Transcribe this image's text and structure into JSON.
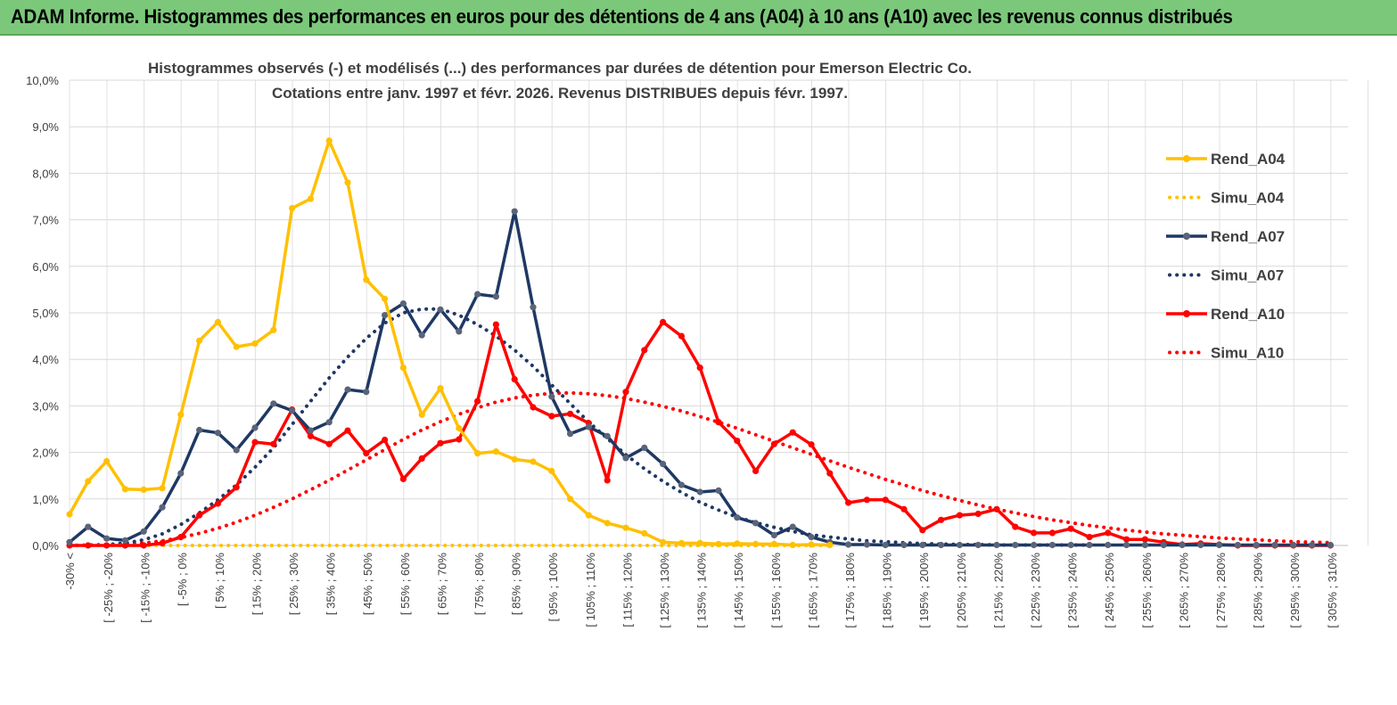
{
  "banner": {
    "title": "ADAM Informe. Histogrammes des performances en euros pour des détentions de 4 ans (A04) à 10 ans (A10) avec les revenus connus distribués"
  },
  "chart_data": {
    "type": "line",
    "title_line1": "Histogrammes observés (-) et modélisés (...) des performances par durées de détention pour Emerson Electric Co.",
    "title_line2": "Cotations entre janv. 1997 et févr. 2026. Revenus DISTRIBUES depuis févr. 1997.",
    "ylim": [
      0,
      10
    ],
    "yticks": [
      "0,0%",
      "1,0%",
      "2,0%",
      "3,0%",
      "4,0%",
      "5,0%",
      "6,0%",
      "7,0%",
      "8,0%",
      "9,0%",
      "10,0%"
    ],
    "xtick_labels": [
      "-30% <",
      "[ -25% ; -20%",
      "[ -15% ; -10%",
      "[ -5% ; 0%",
      "[ 5% ; 10%",
      "[ 15% ; 20%",
      "[ 25% ; 30%",
      "[ 35% ; 40%",
      "[ 45% ; 50%",
      "[ 55% ; 60%",
      "[ 65% ; 70%",
      "[ 75% ; 80%",
      "[ 85% ; 90%",
      "[ 95% ; 100%",
      "[ 105% ; 110%",
      "[ 115% ; 120%",
      "[ 125% ; 130%",
      "[ 135% ; 140%",
      "[ 145% ; 150%",
      "[ 155% ; 160%",
      "[ 165% ; 170%",
      "[ 175% ; 180%",
      "[ 185% ; 190%",
      "[ 195% ; 200%",
      "[ 205% ; 210%",
      "[ 215% ; 220%",
      "[ 225% ; 230%",
      "[ 235% ; 240%",
      "[ 245% ; 250%",
      "[ 255% ; 260%",
      "[ 265% ; 270%",
      "[ 275% ; 280%",
      "[ 285% ; 290%",
      "[ 295% ; 300%",
      "[ 305% ; 310%"
    ],
    "n_categories": 69,
    "series": [
      {
        "name": "Rend_A04",
        "style": "solid",
        "color": "#ffc000",
        "values": [
          0.67,
          1.38,
          1.81,
          1.21,
          1.2,
          1.23,
          2.81,
          4.4,
          4.8,
          4.27,
          4.34,
          4.63,
          7.25,
          7.45,
          8.7,
          7.8,
          5.71,
          5.3,
          3.82,
          2.81,
          3.38,
          2.52,
          1.98,
          2.02,
          1.85,
          1.8,
          1.6,
          1.0,
          0.65,
          0.48,
          0.38,
          0.26,
          0.07,
          0.05,
          0.05,
          0.03,
          0.04,
          0.03,
          0.03,
          0.01,
          0.02,
          0.01
        ]
      },
      {
        "name": "Simu_A04",
        "style": "dotted",
        "color": "#ffc000",
        "values": [
          0,
          0,
          0,
          0,
          0,
          0,
          0,
          0,
          0,
          0,
          0,
          0,
          0,
          0,
          0,
          0,
          0,
          0,
          0,
          0,
          0,
          0,
          0,
          0,
          0,
          0,
          0,
          0,
          0,
          0,
          0,
          0,
          0,
          0,
          0,
          0,
          0,
          0,
          0,
          0,
          0,
          0
        ]
      },
      {
        "name": "Rend_A07",
        "style": "solid",
        "color": "#1f3864",
        "values": [
          0.07,
          0.4,
          0.15,
          0.11,
          0.3,
          0.82,
          1.55,
          2.48,
          2.42,
          2.05,
          2.53,
          3.05,
          2.9,
          2.47,
          2.65,
          3.35,
          3.3,
          4.95,
          5.2,
          4.52,
          5.07,
          4.6,
          5.4,
          5.35,
          7.18,
          5.12,
          3.2,
          2.4,
          2.55,
          2.35,
          1.88,
          2.1,
          1.75,
          1.3,
          1.15,
          1.18,
          0.6,
          0.48,
          0.22,
          0.4,
          0.18,
          0.07,
          0.02,
          0.02,
          0.01,
          0.01,
          0.01,
          0.01,
          0.01,
          0.01,
          0.01,
          0.01,
          0.01,
          0.01,
          0.01,
          0.01,
          0.01,
          0.01,
          0.01,
          0.01,
          0.01,
          0.01,
          0.01,
          0.01,
          0.01,
          0.01,
          0.01,
          0.01,
          0.01
        ]
      },
      {
        "name": "Simu_A07",
        "style": "dotted",
        "color": "#1f3864",
        "values": [
          0.0,
          0.01,
          0.02,
          0.05,
          0.12,
          0.25,
          0.45,
          0.7,
          0.98,
          1.3,
          1.68,
          2.1,
          2.6,
          3.1,
          3.6,
          4.05,
          4.45,
          4.78,
          5.0,
          5.08,
          5.08,
          4.95,
          4.75,
          4.5,
          4.2,
          3.85,
          3.45,
          3.05,
          2.65,
          2.3,
          1.95,
          1.65,
          1.38,
          1.14,
          0.93,
          0.76,
          0.61,
          0.49,
          0.39,
          0.3,
          0.23,
          0.18,
          0.14,
          0.1,
          0.08,
          0.06,
          0.04,
          0.03,
          0.02,
          0.02,
          0.01,
          0.01,
          0.01,
          0.01,
          0.01,
          0.01
        ]
      },
      {
        "name": "Rend_A10",
        "style": "solid",
        "color": "#ff0000",
        "values": [
          0.0,
          0.0,
          0.0,
          0.0,
          0.0,
          0.05,
          0.18,
          0.65,
          0.9,
          1.25,
          2.22,
          2.18,
          2.92,
          2.35,
          2.18,
          2.47,
          1.98,
          2.27,
          1.43,
          1.87,
          2.2,
          2.28,
          3.1,
          4.75,
          3.57,
          2.97,
          2.78,
          2.83,
          2.63,
          1.4,
          3.3,
          4.2,
          4.8,
          4.5,
          3.82,
          2.65,
          2.25,
          1.6,
          2.18,
          2.43,
          2.17,
          1.55,
          0.92,
          0.98,
          0.98,
          0.78,
          0.33,
          0.55,
          0.65,
          0.68,
          0.78,
          0.4,
          0.27,
          0.27,
          0.36,
          0.18,
          0.27,
          0.13,
          0.13,
          0.07,
          0.02,
          0.04,
          0.02,
          0.0,
          0.0,
          0.0,
          0.0,
          0.0,
          0.0
        ]
      },
      {
        "name": "Simu_A10",
        "style": "dotted",
        "color": "#ff0000",
        "values": [
          0.0,
          0.0,
          0.01,
          0.02,
          0.05,
          0.1,
          0.17,
          0.26,
          0.37,
          0.5,
          0.65,
          0.82,
          1.0,
          1.2,
          1.4,
          1.62,
          1.84,
          2.06,
          2.28,
          2.48,
          2.66,
          2.82,
          2.96,
          3.08,
          3.17,
          3.23,
          3.27,
          3.28,
          3.26,
          3.22,
          3.16,
          3.08,
          2.99,
          2.89,
          2.77,
          2.65,
          2.52,
          2.38,
          2.24,
          2.1,
          1.96,
          1.82,
          1.68,
          1.55,
          1.42,
          1.3,
          1.18,
          1.07,
          0.97,
          0.87,
          0.78,
          0.7,
          0.62,
          0.55,
          0.49,
          0.43,
          0.38,
          0.33,
          0.29,
          0.25,
          0.22,
          0.19,
          0.16,
          0.14,
          0.12,
          0.1,
          0.08,
          0.07,
          0.06
        ]
      }
    ],
    "legend_position": "right"
  }
}
